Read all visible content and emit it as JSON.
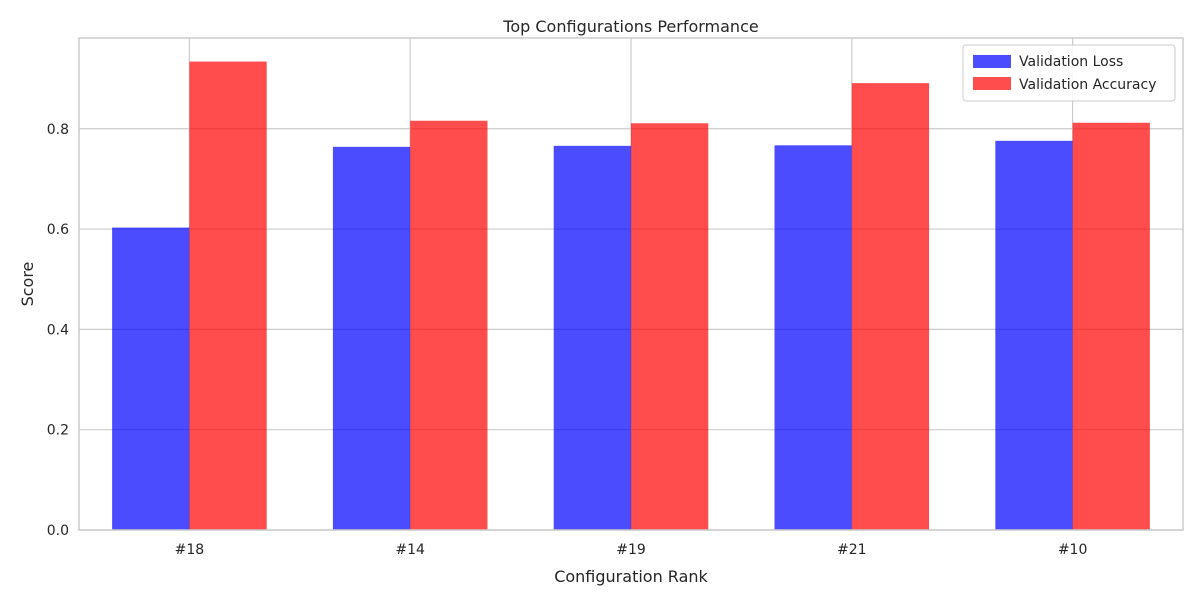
{
  "chart_data": {
    "type": "bar",
    "title": "Top Configurations Performance",
    "xlabel": "Configuration Rank",
    "ylabel": "Score",
    "categories": [
      "#18",
      "#14",
      "#19",
      "#21",
      "#10"
    ],
    "series": [
      {
        "name": "Validation Loss",
        "values": [
          0.603,
          0.764,
          0.766,
          0.767,
          0.776
        ],
        "color": "#0000ff",
        "opacity": 0.7
      },
      {
        "name": "Validation Accuracy",
        "values": [
          0.934,
          0.816,
          0.811,
          0.891,
          0.812
        ],
        "color": "#ff0000",
        "opacity": 0.7
      }
    ],
    "yticks": [
      "0.0",
      "0.2",
      "0.4",
      "0.6",
      "0.8"
    ],
    "ylim": [
      0,
      0.981
    ],
    "grid": true,
    "legend_position": "top-right"
  }
}
